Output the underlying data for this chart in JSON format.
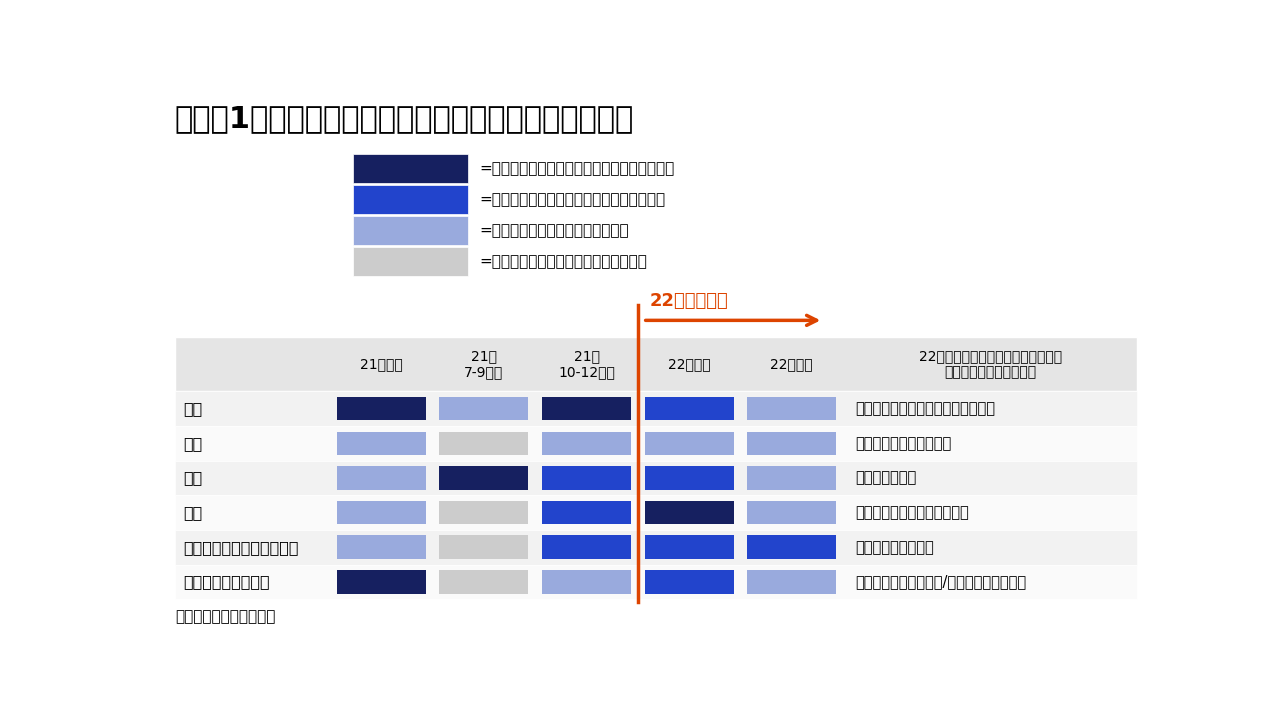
{
  "title": "（図表1）主要地域の景気モメンタムについての見通し",
  "title_fontsize": 22,
  "bg_color": "#ffffff",
  "colors": {
    "dark_navy": "#162060",
    "medium_blue": "#2244cc",
    "light_blue": "#99aadd",
    "light_gray": "#cccccc"
  },
  "legend_items": [
    {
      "color": "#162060",
      "text": "=景気モメンタムが潜在成長率を大幅に上回る"
    },
    {
      "color": "#2244cc",
      "text": "=景気モメンタムが潜在成長率をやや上回る"
    },
    {
      "color": "#99aadd",
      "text": "=景気モメンタムが潜在成長率程度"
    },
    {
      "color": "#cccccc",
      "text": "=景気モメンタムが潜在成長率を下回る"
    }
  ],
  "col_headers": [
    "21年前半",
    "21年\n7-9月期",
    "21年\n10-12月期",
    "22年前半",
    "22年後半",
    "22年の景気を左右する注目ポイント\n（コロナ感染状況以外）"
  ],
  "row_labels": [
    "米国",
    "中国",
    "欧州",
    "日本",
    "アジア新興国（中国以外）",
    "アジア以外の新興国"
  ],
  "source_text": "（出所）インベスコ作成",
  "arrow_label": "22年の見通し",
  "arrow_color": "#dd4400",
  "row_notes": [
    "雇用の増加ペースとインフレの行方",
    "政府による景気サポート",
    "インフレの行方",
    "財政出動と資本財輸出の行方",
    "ワクチン接種の進展",
    "金融引き締めの悪影響/ワクチン接種の進展"
  ],
  "cell_colors": [
    [
      "dark_navy",
      "light_blue",
      "dark_navy",
      "medium_blue",
      "light_blue"
    ],
    [
      "light_blue",
      "light_gray",
      "light_blue",
      "light_blue",
      "light_blue"
    ],
    [
      "light_blue",
      "dark_navy",
      "medium_blue",
      "medium_blue",
      "light_blue"
    ],
    [
      "light_blue",
      "light_gray",
      "medium_blue",
      "dark_navy",
      "light_blue"
    ],
    [
      "light_blue",
      "light_gray",
      "medium_blue",
      "medium_blue",
      "medium_blue"
    ],
    [
      "dark_navy",
      "light_gray",
      "light_blue",
      "medium_blue",
      "light_blue"
    ]
  ]
}
